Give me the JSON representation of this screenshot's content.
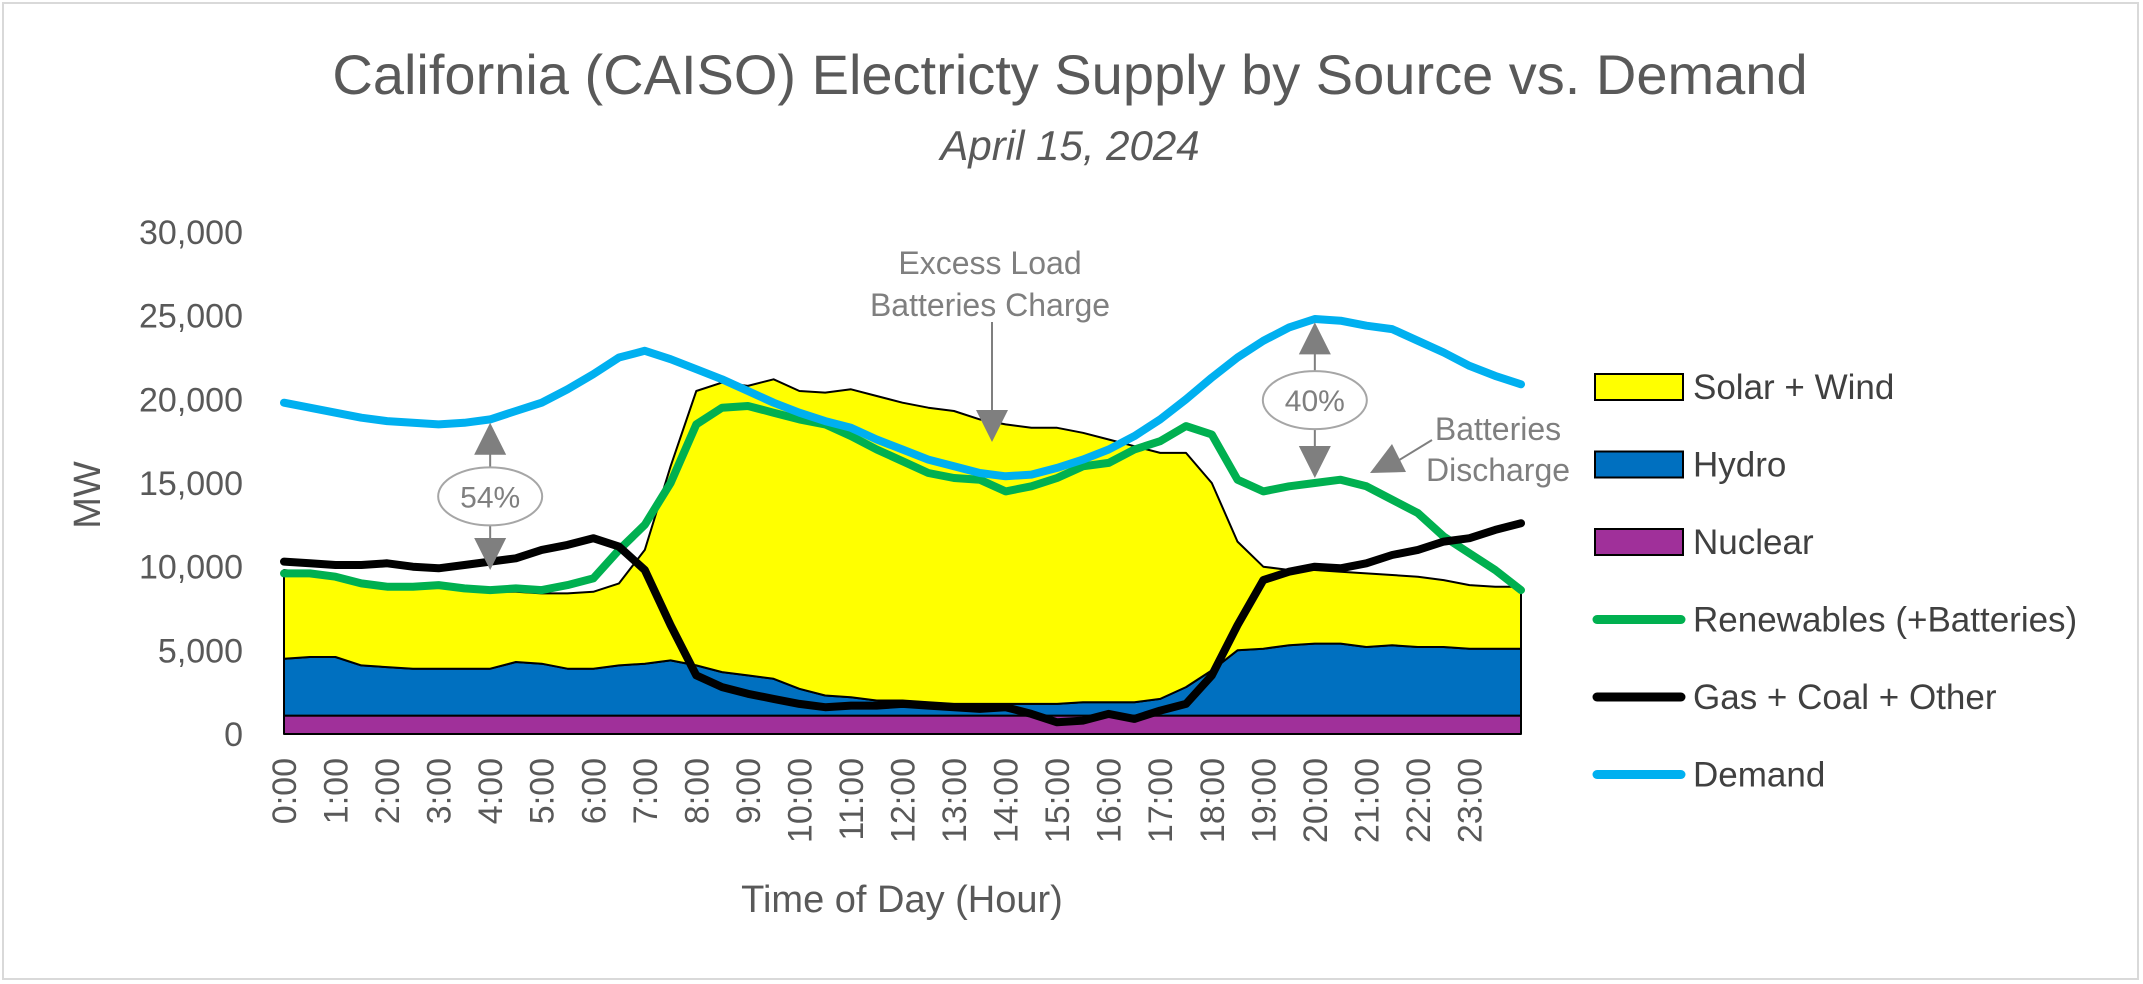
{
  "chart_data": {
    "type": "area",
    "title": "California (CAISO) Electricty Supply by Source vs. Demand",
    "subtitle": "April 15, 2024",
    "xlabel": "Time of Day (Hour)",
    "ylabel": "MW",
    "ylim": [
      0,
      30000
    ],
    "yticks": [
      0,
      5000,
      10000,
      15000,
      20000,
      25000,
      30000
    ],
    "ytick_labels": [
      "0",
      "5,000",
      "10,000",
      "15,000",
      "20,000",
      "25,000",
      "30,000"
    ],
    "x_hours": [
      0,
      0.5,
      1,
      1.5,
      2,
      2.5,
      3,
      3.5,
      4,
      4.5,
      5,
      5.5,
      6,
      6.5,
      7,
      7.5,
      8,
      8.5,
      9,
      9.5,
      10,
      10.5,
      11,
      11.5,
      12,
      12.5,
      13,
      13.5,
      14,
      14.5,
      15,
      15.5,
      16,
      16.5,
      17,
      17.5,
      18,
      18.5,
      19,
      19.5,
      20,
      20.5,
      21,
      21.5,
      22,
      22.5,
      23,
      23.5,
      24
    ],
    "x_labels": [
      "0:00",
      "1:00",
      "2:00",
      "3:00",
      "4:00",
      "5:00",
      "6:00",
      "7:00",
      "8:00",
      "9:00",
      "10:00",
      "11:00",
      "12:00",
      "13:00",
      "14:00",
      "15:00",
      "16:00",
      "17:00",
      "18:00",
      "19:00",
      "20:00",
      "21:00",
      "22:00",
      "23:00"
    ],
    "x_max": 24,
    "grid": false,
    "legend_position": "right",
    "series": [
      {
        "name": "Nuclear",
        "kind": "area",
        "color": "#a0309a",
        "values": [
          1100,
          1100,
          1100,
          1100,
          1100,
          1100,
          1100,
          1100,
          1100,
          1100,
          1100,
          1100,
          1100,
          1100,
          1100,
          1100,
          1100,
          1100,
          1100,
          1100,
          1100,
          1100,
          1100,
          1100,
          1100,
          1100,
          1100,
          1100,
          1100,
          1100,
          1100,
          1100,
          1100,
          1100,
          1100,
          1100,
          1100,
          1100,
          1100,
          1100,
          1100,
          1100,
          1100,
          1100,
          1100,
          1100,
          1100,
          1100,
          1100
        ]
      },
      {
        "name": "Hydro",
        "kind": "area",
        "color": "#0070c0",
        "values": [
          4500,
          4600,
          4600,
          4100,
          4000,
          3900,
          3900,
          3900,
          3900,
          4300,
          4200,
          3900,
          3900,
          4100,
          4200,
          4400,
          4100,
          3700,
          3500,
          3300,
          2700,
          2300,
          2200,
          2000,
          2000,
          1900,
          1800,
          1800,
          1800,
          1800,
          1800,
          1900,
          1900,
          1900,
          2100,
          2800,
          3800,
          5000,
          5100,
          5300,
          5400,
          5400,
          5200,
          5300,
          5200,
          5200,
          5100,
          5100,
          5100
        ]
      },
      {
        "name": "Solar + Wind",
        "kind": "area",
        "color": "#ffff00",
        "values": [
          9800,
          9600,
          9400,
          9000,
          8800,
          8700,
          8800,
          8700,
          8500,
          8500,
          8400,
          8400,
          8500,
          9000,
          11000,
          16000,
          20500,
          21000,
          20800,
          21200,
          20500,
          20400,
          20600,
          20200,
          19800,
          19500,
          19300,
          18800,
          18500,
          18300,
          18300,
          18000,
          17600,
          17200,
          16800,
          16800,
          15000,
          11500,
          10000,
          9800,
          9800,
          9700,
          9600,
          9500,
          9400,
          9200,
          8900,
          8800,
          8800
        ]
      },
      {
        "name": "Renewables (+Batteries)",
        "kind": "line",
        "color": "#00b050",
        "values": [
          9600,
          9600,
          9400,
          9000,
          8800,
          8800,
          8900,
          8700,
          8600,
          8700,
          8600,
          8900,
          9300,
          11000,
          12500,
          15000,
          18500,
          19500,
          19600,
          19200,
          18800,
          18500,
          17800,
          17000,
          16300,
          15600,
          15300,
          15200,
          14500,
          14800,
          15300,
          16000,
          16200,
          17000,
          17500,
          18400,
          17900,
          15200,
          14500,
          14800,
          15000,
          15200,
          14800,
          14000,
          13200,
          11800,
          10800,
          9800,
          8600
        ]
      },
      {
        "name": "Gas + Coal + Other",
        "kind": "line",
        "color": "#000000",
        "values": [
          10300,
          10200,
          10100,
          10100,
          10200,
          10000,
          9900,
          10100,
          10300,
          10500,
          11000,
          11300,
          11700,
          11200,
          9800,
          6500,
          3500,
          2800,
          2400,
          2100,
          1800,
          1600,
          1700,
          1700,
          1800,
          1700,
          1600,
          1500,
          1600,
          1200,
          700,
          800,
          1200,
          900,
          1400,
          1800,
          3500,
          6500,
          9200,
          9700,
          10000,
          9900,
          10200,
          10700,
          11000,
          11500,
          11700,
          12200,
          12600
        ]
      },
      {
        "name": "Demand",
        "kind": "line",
        "color": "#00b0f0",
        "values": [
          19800,
          19500,
          19200,
          18900,
          18700,
          18600,
          18500,
          18600,
          18800,
          19300,
          19800,
          20600,
          21500,
          22500,
          22900,
          22400,
          21800,
          21200,
          20500,
          19800,
          19200,
          18700,
          18300,
          17600,
          17000,
          16400,
          16000,
          15600,
          15400,
          15500,
          15900,
          16400,
          17000,
          17800,
          18800,
          20000,
          21300,
          22500,
          23500,
          24300,
          24800,
          24700,
          24400,
          24200,
          23500,
          22800,
          22000,
          21400,
          20900
        ]
      }
    ],
    "legend_order": [
      "Solar + Wind",
      "Hydro",
      "Nuclear",
      "Renewables (+Batteries)",
      "Gas + Coal + Other",
      "Demand"
    ],
    "annotations": [
      {
        "id": "excess",
        "lines": [
          "Excess Load",
          "Batteries Charge"
        ]
      },
      {
        "id": "discharge",
        "lines": [
          "Batteries",
          "Discharge"
        ]
      },
      {
        "id": "pct-54",
        "text": "54%",
        "hour": 4.0,
        "low": 9800,
        "high": 18600
      },
      {
        "id": "pct-40",
        "text": "40%",
        "hour": 20.0,
        "low": 15300,
        "high": 24600
      }
    ]
  }
}
